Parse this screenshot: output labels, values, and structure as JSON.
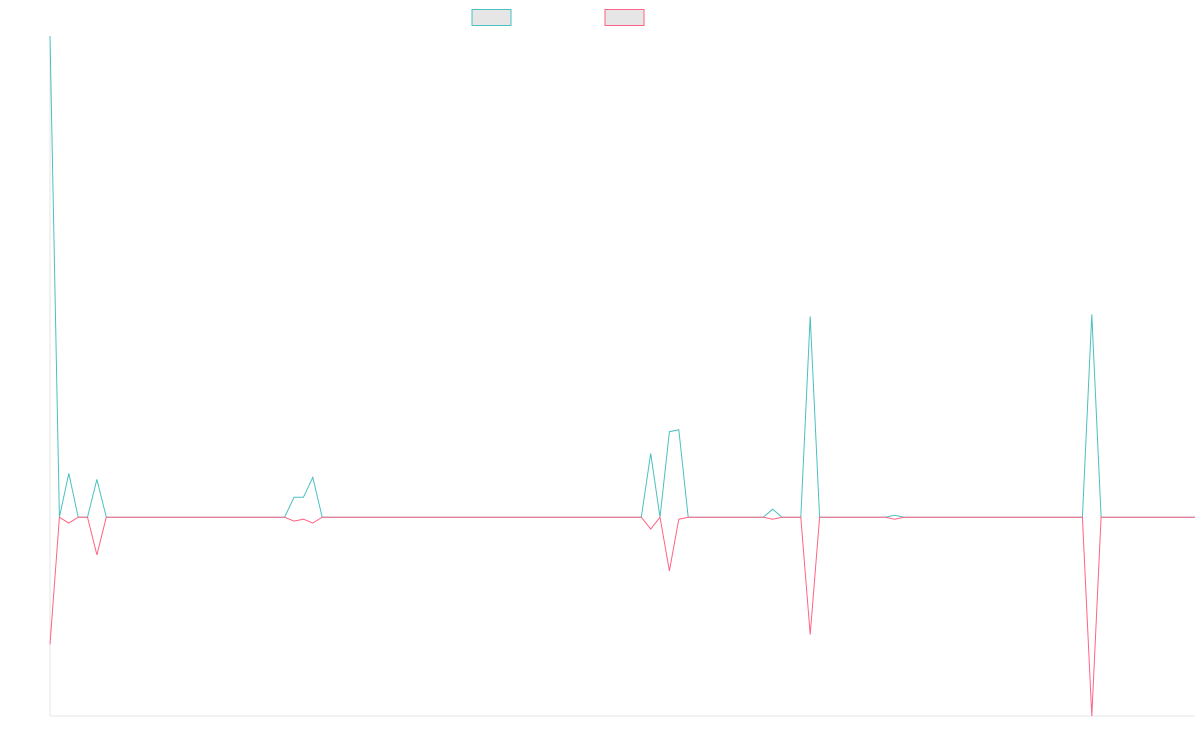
{
  "chart_data": {
    "type": "line",
    "title": "",
    "xlabel": "",
    "ylabel": "",
    "ylim": [
      -100,
      242
    ],
    "grid": false,
    "legend": "top-center",
    "x": [
      0,
      1,
      2,
      3,
      4,
      5,
      6,
      7,
      8,
      9,
      10,
      11,
      12,
      13,
      14,
      15,
      16,
      17,
      18,
      19,
      20,
      21,
      22,
      23,
      24,
      25,
      26,
      27,
      28,
      29,
      30,
      31,
      32,
      33,
      34,
      35,
      36,
      37,
      38,
      39,
      40,
      41,
      42,
      43,
      44,
      45,
      46,
      47,
      48,
      49,
      50,
      51,
      52,
      53,
      54,
      55,
      56,
      57,
      58,
      59,
      60,
      61,
      62,
      63,
      64,
      65,
      66,
      67,
      68,
      69,
      70,
      71,
      72,
      73,
      74,
      75,
      76,
      77,
      78,
      79,
      80,
      81,
      82,
      83,
      84,
      85,
      86,
      87,
      88,
      89,
      90,
      91,
      92,
      93,
      94,
      95,
      96,
      97,
      98,
      99,
      100,
      101,
      102,
      103,
      104,
      105,
      106,
      107,
      108,
      109,
      110,
      111,
      112,
      113,
      114,
      115,
      116,
      117,
      118,
      119,
      120,
      121,
      122
    ],
    "series": [
      {
        "color": "#4bc0c0",
        "values": [
          242,
          0,
          22,
          0,
          0,
          19,
          0,
          0,
          0,
          0,
          0,
          0,
          0,
          0,
          0,
          0,
          0,
          0,
          0,
          0,
          0,
          0,
          0,
          0,
          0,
          0,
          10,
          10,
          20,
          0,
          0,
          0,
          0,
          0,
          0,
          0,
          0,
          0,
          0,
          0,
          0,
          0,
          0,
          0,
          0,
          0,
          0,
          0,
          0,
          0,
          0,
          0,
          0,
          0,
          0,
          0,
          0,
          0,
          0,
          0,
          0,
          0,
          0,
          0,
          32,
          0,
          43,
          44,
          0,
          0,
          0,
          0,
          0,
          0,
          0,
          0,
          0,
          4,
          0,
          0,
          0,
          101,
          0,
          0,
          0,
          0,
          0,
          0,
          0,
          0,
          1,
          0,
          0,
          0,
          0,
          0,
          0,
          0,
          0,
          0,
          0,
          0,
          0,
          0,
          0,
          0,
          0,
          0,
          0,
          0,
          0,
          102,
          0,
          0,
          0,
          0,
          0,
          0,
          0,
          0,
          0,
          0,
          0
        ]
      },
      {
        "color": "#ff6384",
        "values": [
          -64,
          0,
          -3,
          0,
          0,
          -19,
          0,
          0,
          0,
          0,
          0,
          0,
          0,
          0,
          0,
          0,
          0,
          0,
          0,
          0,
          0,
          0,
          0,
          0,
          0,
          0,
          -2,
          -1,
          -3,
          0,
          0,
          0,
          0,
          0,
          0,
          0,
          0,
          0,
          0,
          0,
          0,
          0,
          0,
          0,
          0,
          0,
          0,
          0,
          0,
          0,
          0,
          0,
          0,
          0,
          0,
          0,
          0,
          0,
          0,
          0,
          0,
          0,
          0,
          0,
          -6,
          0,
          -27,
          -1,
          0,
          0,
          0,
          0,
          0,
          0,
          0,
          0,
          0,
          -1,
          0,
          0,
          0,
          -59,
          0,
          0,
          0,
          0,
          0,
          0,
          0,
          0,
          -1,
          0,
          0,
          0,
          0,
          0,
          0,
          0,
          0,
          0,
          0,
          0,
          0,
          0,
          0,
          0,
          0,
          0,
          0,
          0,
          0,
          -100,
          0,
          0,
          0,
          0,
          0,
          0,
          0,
          0,
          0,
          0,
          0
        ]
      }
    ]
  }
}
